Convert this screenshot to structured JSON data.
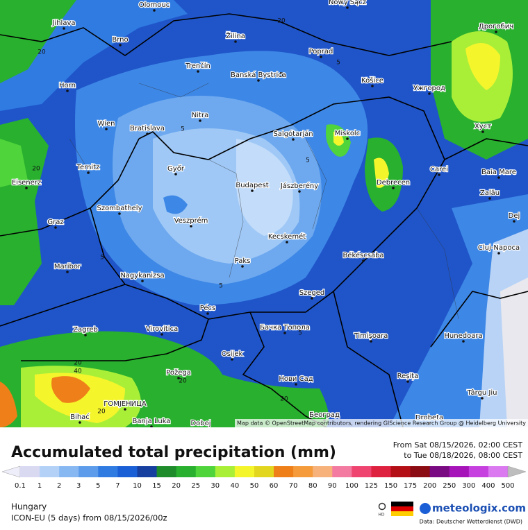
{
  "header": {
    "title": "Accumulated total precipitation (mm)",
    "period_from": "From Sat 08/15/2026, 02:00 CEST",
    "period_to": "to Tue 08/18/2026, 08:00 CEST"
  },
  "legend": {
    "labels": [
      0.1,
      1,
      2,
      3,
      5,
      7,
      10,
      15,
      20,
      25,
      30,
      40,
      50,
      60,
      70,
      80,
      90,
      100,
      125,
      150,
      175,
      200,
      250,
      300,
      400,
      500
    ],
    "colors": [
      "#d9d9f2",
      "#b3d1f7",
      "#87b8f2",
      "#5c9ceb",
      "#2f7be2",
      "#1b5fd6",
      "#163f9f",
      "#1f8c2b",
      "#28b02e",
      "#4fd43b",
      "#a9ef38",
      "#f5f52c",
      "#e3d61f",
      "#ef7f19",
      "#f59b3c",
      "#f6b27a",
      "#f37aa0",
      "#ef4470",
      "#df2140",
      "#b40e16",
      "#8b0c12",
      "#7a0a82",
      "#a614b9",
      "#c640e0",
      "#da79f0",
      "#eaa9f5"
    ],
    "below_color": "#eeeefa",
    "above_color": "#bdbdbd"
  },
  "footer": {
    "region": "Hungary",
    "model": "ICON-EU (5 days) from 08/15/2026/00z",
    "brand": "meteologix.com",
    "source": "Data: Deutscher Wetterdienst (DWD)",
    "hd": "HD"
  },
  "map": {
    "attribution": "Map data © OpenStreetMap contributors, rendering GIScience Research Group @ Heidelberg University",
    "cities": [
      "Olomouc",
      "Nowy Sącz",
      "Jihlava",
      "Žilina",
      "Дрогобич",
      "Brno",
      "Poprad",
      "Trenčín",
      "Banská Bystrica",
      "Horn",
      "Košice",
      "Ужгород",
      "Nitra",
      "Wien",
      "Bratislava",
      "Salgótarján",
      "Miskolc",
      "Хуст",
      "Ternitz",
      "Győr",
      "Carei",
      "Baia Mare",
      "Eisenerz",
      "Budapest",
      "Jászberény",
      "Debrecen",
      "Szombathely",
      "Zalău",
      "Graz",
      "Veszprém",
      "Dej",
      "Kecskemét",
      "Cluj-Napoca",
      "Maribor",
      "Paks",
      "Békéscsaba",
      "Nagykanizsa",
      "Szeged",
      "Pécs",
      "Zagreb",
      "Virovitica",
      "Бачка Топола",
      "Timișoara",
      "Hunedoara",
      "Osijek",
      "Požega",
      "Нови Сад",
      "Reșița",
      "Târgu Jiu",
      "ГОМЈЕНИЦА",
      "Bihać",
      "Banja Luka",
      "Doboj",
      "Београд",
      "Drobeta"
    ],
    "contour_labels": [
      5,
      5,
      5,
      5,
      5,
      5,
      5,
      20,
      20,
      20,
      20,
      20,
      20,
      20,
      40
    ]
  }
}
